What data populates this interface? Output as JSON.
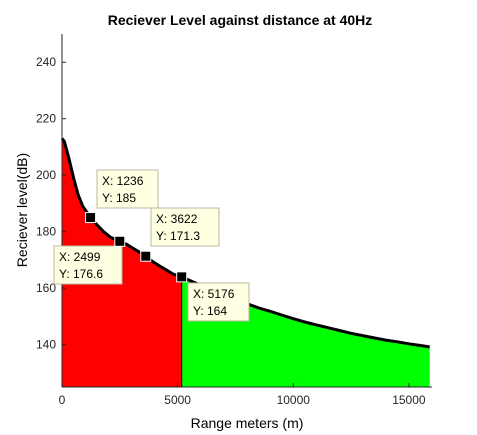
{
  "chart_data": {
    "type": "area",
    "title": "Reciever Level against distance at 40Hz",
    "xlabel": "Range meters (m)",
    "ylabel": "Reciever level(dB)",
    "xlim": [
      0,
      16000
    ],
    "ylim": [
      125,
      250
    ],
    "xticks": [
      0,
      5000,
      10000,
      15000
    ],
    "yticks": [
      140,
      160,
      180,
      200,
      220,
      240
    ],
    "grid": false,
    "colors": {
      "near_fill": "#ff0000",
      "far_fill": "#00ff00",
      "line": "#000000"
    },
    "split_x": 5176,
    "series": [
      {
        "x": [
          0,
          100,
          300,
          500,
          700,
          900,
          1236,
          1500,
          1800,
          2100,
          2499,
          2800,
          3100,
          3400,
          3622,
          3900,
          4200,
          4500,
          4800,
          5176,
          5500,
          6000,
          6500,
          7000,
          7500,
          8000,
          8500,
          9000,
          9500,
          10000,
          10500,
          11000,
          11500,
          12000,
          12500,
          13000,
          13500,
          14000,
          14500,
          15000,
          15500,
          15900
        ],
        "y": [
          213,
          212,
          206,
          199,
          193,
          189,
          185,
          182.5,
          180,
          178,
          176.6,
          175.5,
          174,
          172.5,
          171.3,
          169.5,
          168,
          166.5,
          165,
          164,
          162.8,
          161,
          159,
          157.5,
          156,
          154.5,
          153,
          151.8,
          150.5,
          149.2,
          148,
          147,
          146,
          145,
          144,
          143.2,
          142.4,
          141.6,
          141,
          140.3,
          139.7,
          139.2
        ]
      }
    ],
    "datatips": [
      {
        "x": 1236,
        "y": 185,
        "x_text": "X: 1236",
        "y_text": "Y: 185"
      },
      {
        "x": 2499,
        "y": 176.6,
        "x_text": "X: 2499",
        "y_text": "Y: 176.6"
      },
      {
        "x": 3622,
        "y": 171.3,
        "x_text": "X: 3622",
        "y_text": "Y: 171.3"
      },
      {
        "x": 5176,
        "y": 164,
        "x_text": "X: 5176",
        "y_text": "Y: 164"
      }
    ]
  }
}
